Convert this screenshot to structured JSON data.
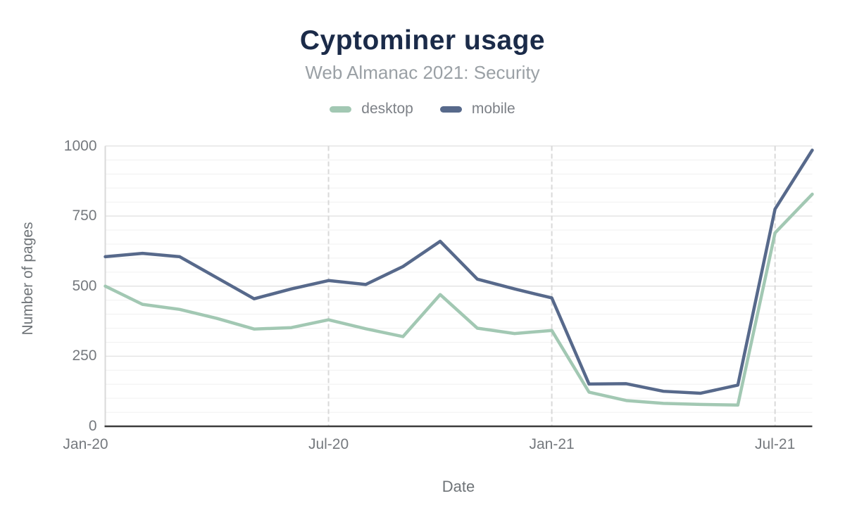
{
  "chart_data": {
    "type": "line",
    "title": "Cyptominer usage",
    "subtitle": "Web Almanac 2021: Security",
    "xlabel": "Date",
    "ylabel": "Number of pages",
    "x": [
      "Jan-20",
      "Feb-20",
      "Mar-20",
      "Apr-20",
      "May-20",
      "Jun-20",
      "Jul-20",
      "Aug-20",
      "Sep-20",
      "Oct-20",
      "Nov-20",
      "Dec-20",
      "Jan-21",
      "Feb-21",
      "Mar-21",
      "Apr-21",
      "May-21",
      "Jun-21",
      "Jul-21",
      "Aug-21"
    ],
    "x_tick_labels": [
      "Jan-20",
      "Jul-20",
      "Jan-21",
      "Jul-21"
    ],
    "x_tick_indices": [
      0,
      6,
      12,
      18
    ],
    "series": [
      {
        "name": "desktop",
        "color": "#a2c8b3",
        "values": [
          500,
          435,
          417,
          385,
          347,
          352,
          380,
          348,
          320,
          470,
          350,
          331,
          342,
          122,
          92,
          82,
          78,
          76,
          690,
          828
        ]
      },
      {
        "name": "mobile",
        "color": "#57698b",
        "values": [
          605,
          617,
          605,
          530,
          455,
          490,
          520,
          506,
          570,
          660,
          525,
          490,
          458,
          151,
          152,
          125,
          118,
          147,
          775,
          985
        ]
      }
    ],
    "ylim": [
      0,
      1000
    ],
    "y_major_step": 250,
    "y_minor_step": 50,
    "grid": "on",
    "legend_position": "top"
  },
  "colors": {
    "background": "#ffffff",
    "title_text": "#1b2b49",
    "subtitle_text": "#9aa0a5",
    "tick_text": "#75797e",
    "axis_title_text": "#6f7478",
    "legend_text": "#7d8187",
    "grid_minor": "#f0f0f0",
    "grid_major": "#e4e4e4",
    "grid_vertical": "#d9d9d9",
    "y_axis_line": "#d9d9d9",
    "x_baseline": "#3c3c3c"
  }
}
